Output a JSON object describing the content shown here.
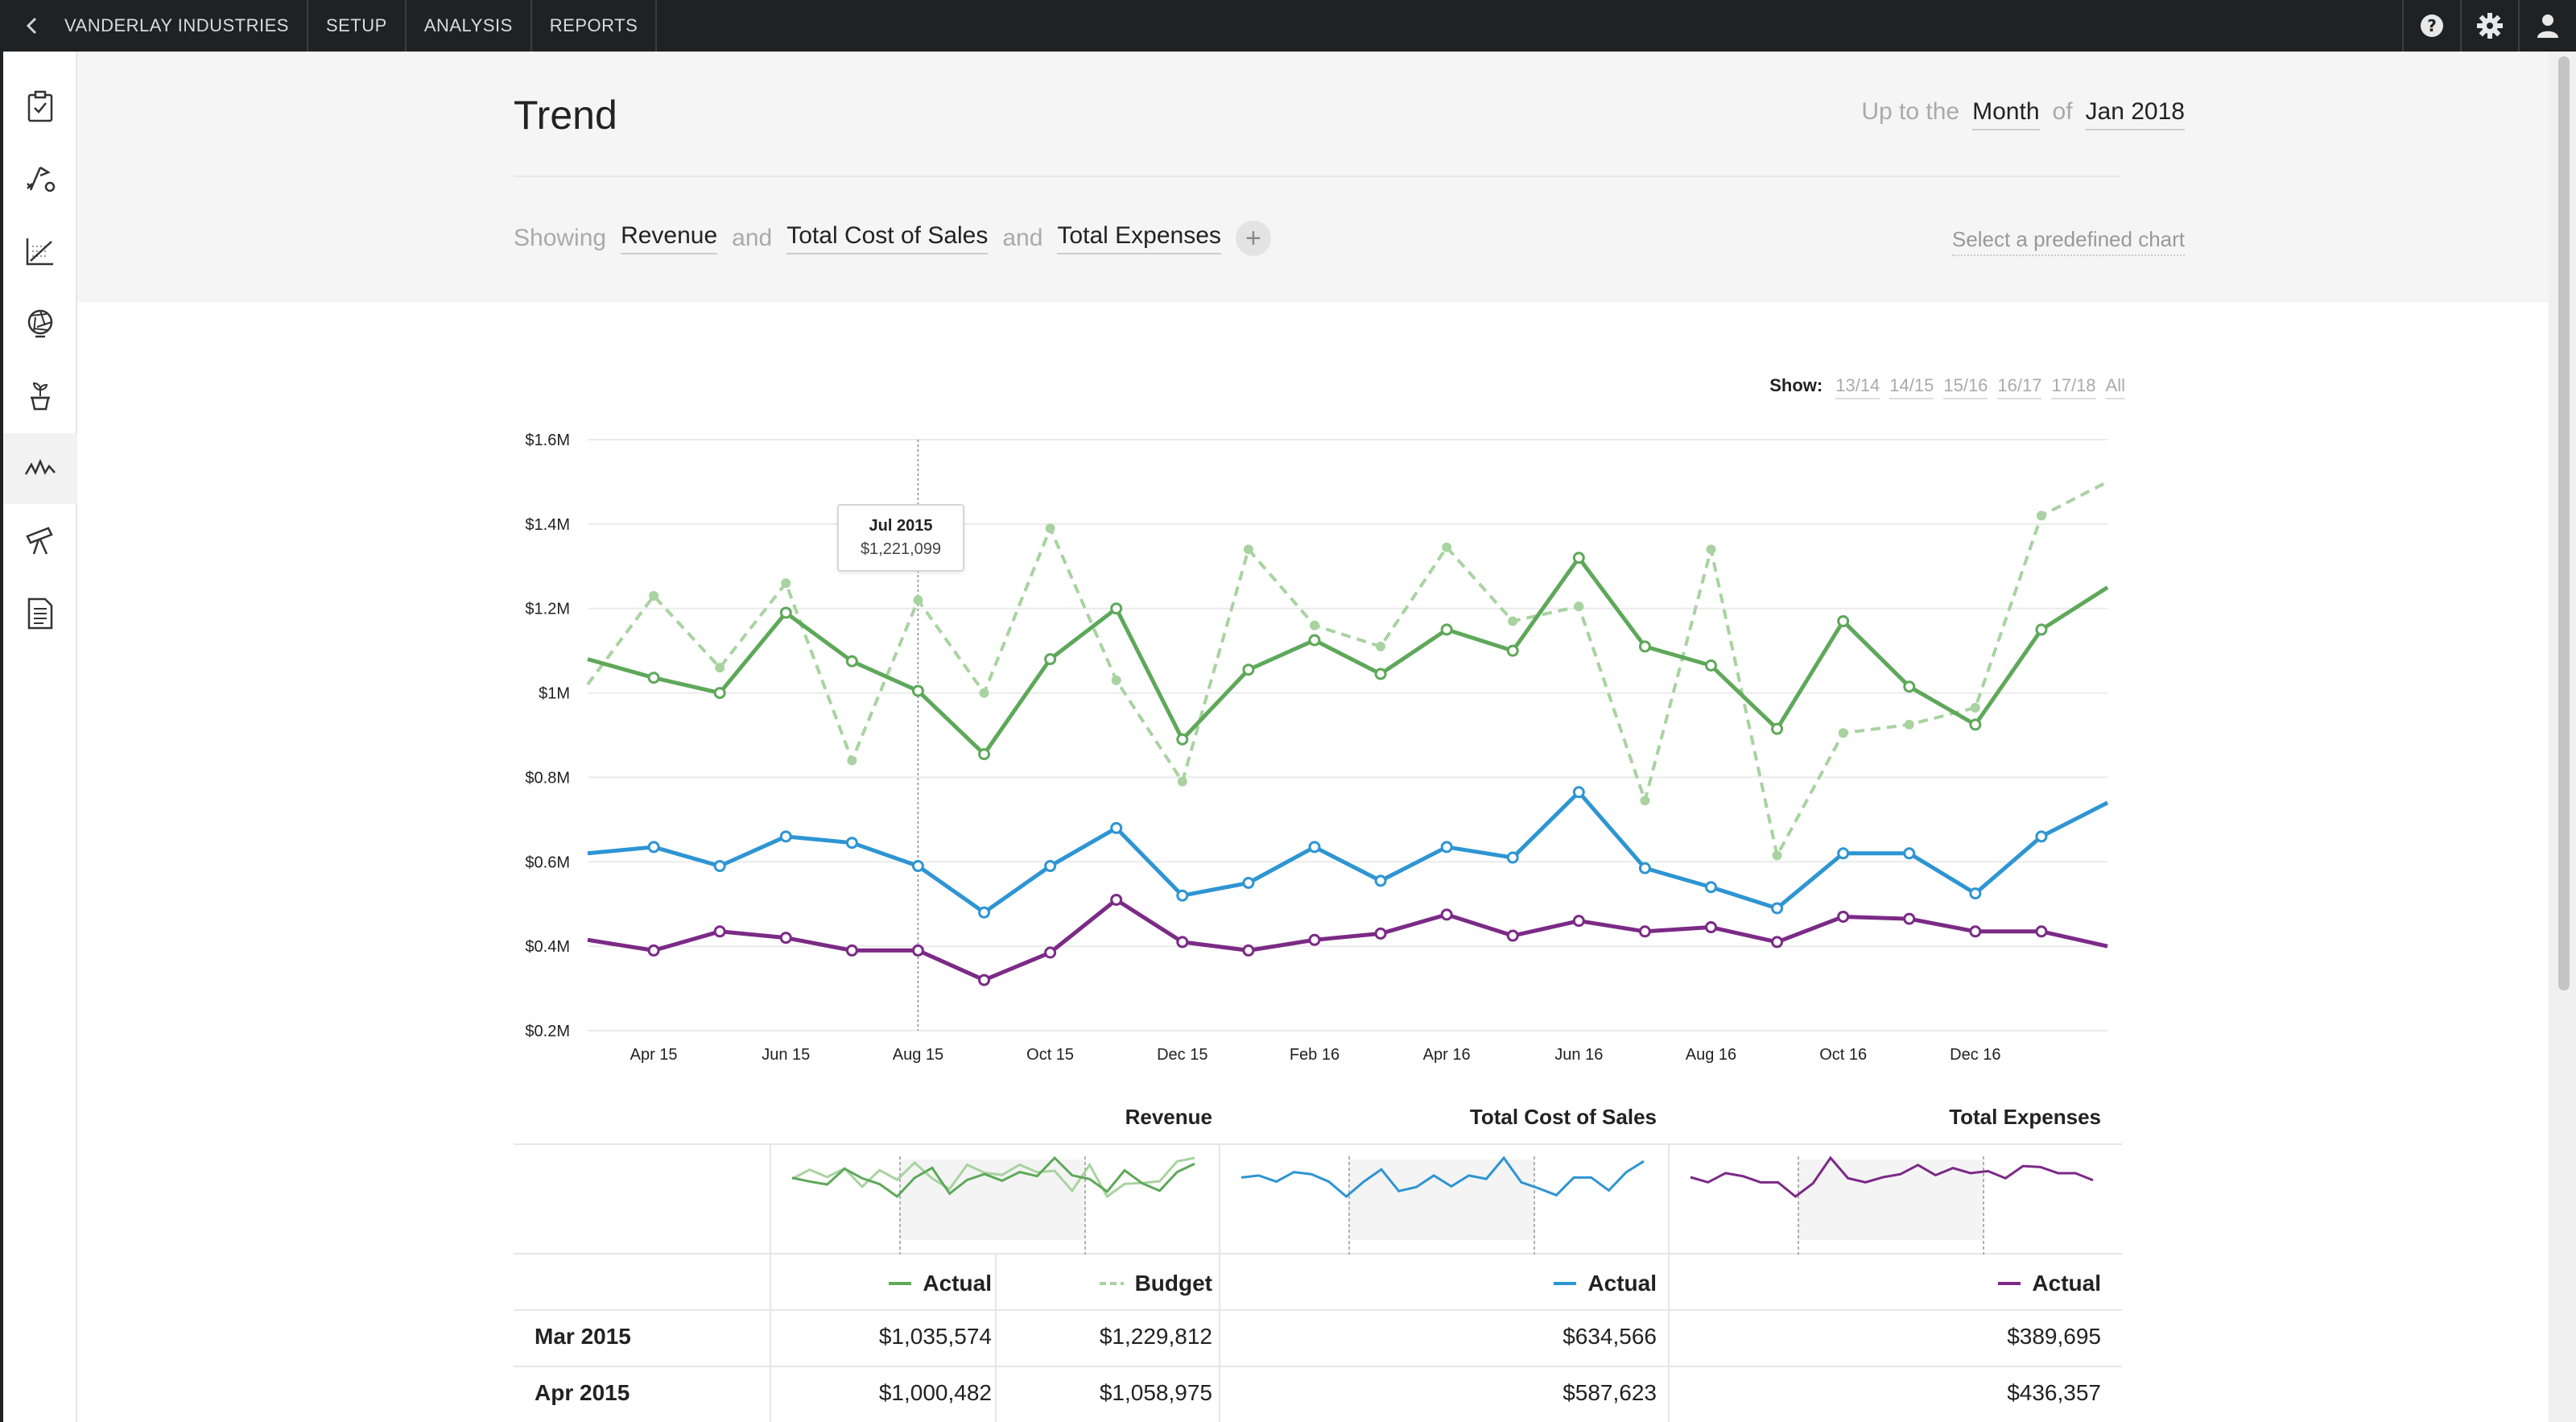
{
  "topbar": {
    "company": "VANDERLAY INDUSTRIES",
    "nav": [
      "SETUP",
      "ANALYSIS",
      "REPORTS"
    ],
    "icons": [
      "help-icon",
      "gear-icon",
      "user-icon"
    ]
  },
  "sidebar": {
    "items": [
      "clipboard-check-icon",
      "strategy-icon",
      "chart-icon",
      "aperture-icon",
      "plant-icon",
      "trend-icon",
      "telescope-icon",
      "report-icon"
    ],
    "active_index": 5
  },
  "header": {
    "title": "Trend",
    "period_prefix": "Up to the",
    "period_unit": "Month",
    "period_of": "of",
    "period_value": "Jan 2018",
    "showing_label": "Showing",
    "metrics": [
      "Revenue",
      "Total Cost of Sales",
      "Total Expenses"
    ],
    "and": "and",
    "add_symbol": "+",
    "predefined_link": "Select a predefined chart"
  },
  "show_selector": {
    "label": "Show:",
    "options": [
      "13/14",
      "14/15",
      "15/16",
      "16/17",
      "17/18",
      "All"
    ]
  },
  "colors": {
    "revenue_actual": "#5ea85a",
    "revenue_budget": "#a8d3a0",
    "cost_of_sales": "#2e95d3",
    "expenses": "#7b2a86"
  },
  "chart_data": {
    "type": "line",
    "x_labels": [
      "Apr 15",
      "Jun 15",
      "Aug 15",
      "Oct 15",
      "Dec 15",
      "Feb 16",
      "Apr 16",
      "Jun 16",
      "Aug 16",
      "Oct 16",
      "Dec 16"
    ],
    "y_tick_labels": [
      "$1.6M",
      "$1.4M",
      "$1.2M",
      "$1M",
      "$0.8M",
      "$0.6M",
      "$0.4M",
      "$0.2M"
    ],
    "ylim": [
      0.2,
      1.6
    ],
    "series": [
      {
        "name": "Revenue Actual",
        "values": [
          1.08,
          1.036,
          1.0,
          1.19,
          1.075,
          1.005,
          0.855,
          1.08,
          1.2,
          0.89,
          1.055,
          1.125,
          1.045,
          1.15,
          1.1,
          1.32,
          1.11,
          1.065,
          0.915,
          1.17,
          1.015,
          0.925,
          1.15,
          1.25
        ]
      },
      {
        "name": "Revenue Budget",
        "values": [
          1.02,
          1.23,
          1.06,
          1.26,
          0.84,
          1.22,
          1.0,
          1.39,
          1.03,
          0.79,
          1.34,
          1.16,
          1.11,
          1.345,
          1.17,
          1.205,
          0.745,
          1.34,
          0.615,
          0.905,
          0.925,
          0.965,
          1.42,
          1.5
        ]
      },
      {
        "name": "Total Cost of Sales Actual",
        "values": [
          0.62,
          0.635,
          0.59,
          0.66,
          0.645,
          0.59,
          0.48,
          0.59,
          0.68,
          0.52,
          0.55,
          0.635,
          0.555,
          0.635,
          0.61,
          0.765,
          0.585,
          0.54,
          0.49,
          0.62,
          0.62,
          0.525,
          0.66,
          0.74
        ]
      },
      {
        "name": "Total Expenses Actual",
        "values": [
          0.415,
          0.39,
          0.435,
          0.42,
          0.39,
          0.39,
          0.32,
          0.385,
          0.51,
          0.41,
          0.39,
          0.415,
          0.43,
          0.475,
          0.425,
          0.46,
          0.435,
          0.445,
          0.41,
          0.47,
          0.465,
          0.435,
          0.435,
          0.4
        ]
      }
    ],
    "tooltip": {
      "label": "Jul 2015",
      "value": "$1,221,099",
      "index": 5
    }
  },
  "table": {
    "headers": {
      "revenue": "Revenue",
      "cost": "Total Cost of Sales",
      "expenses": "Total Expenses"
    },
    "legend": {
      "actual": "Actual",
      "budget": "Budget"
    },
    "rows": [
      {
        "date": "Mar 2015",
        "revenue_actual": "$1,035,574",
        "revenue_budget": "$1,229,812",
        "cost_actual": "$634,566",
        "expenses_actual": "$389,695"
      },
      {
        "date": "Apr 2015",
        "revenue_actual": "$1,000,482",
        "revenue_budget": "$1,058,975",
        "cost_actual": "$587,623",
        "expenses_actual": "$436,357"
      }
    ]
  }
}
